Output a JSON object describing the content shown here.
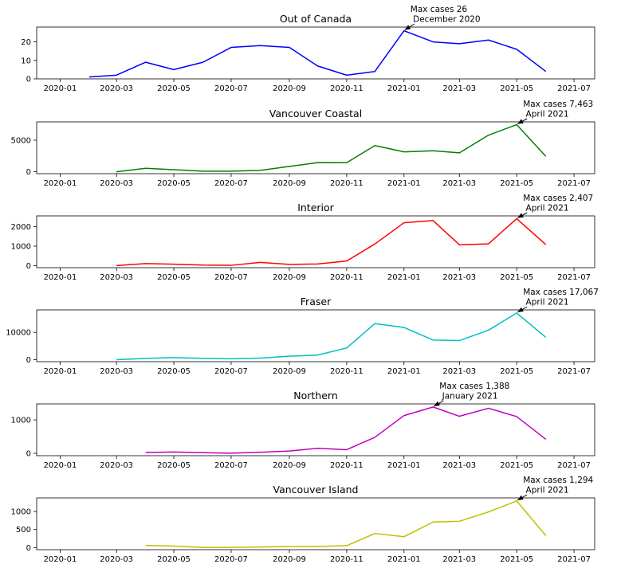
{
  "chart_data": [
    {
      "type": "line",
      "title": "Out of Canada",
      "color": "#0000ff",
      "x": [
        "2020-02-01",
        "2020-03-01",
        "2020-04-01",
        "2020-05-01",
        "2020-06-01",
        "2020-07-01",
        "2020-08-01",
        "2020-09-01",
        "2020-10-01",
        "2020-11-01",
        "2020-12-01",
        "2021-01-01",
        "2021-02-01",
        "2021-03-01",
        "2021-04-01",
        "2021-05-01",
        "2021-06-01"
      ],
      "y": [
        1,
        2,
        9,
        5,
        9,
        17,
        18,
        17,
        7,
        2,
        4,
        26,
        20,
        19,
        21,
        16,
        4
      ],
      "ylim": [
        0,
        28
      ],
      "yticks": [
        0,
        10,
        20
      ],
      "ytick_labels": [
        "0",
        "10",
        "20"
      ],
      "annotation": {
        "line1": "Max cases 26",
        "line2": " December 2020",
        "x": "2021-01-01",
        "y": 26
      }
    },
    {
      "type": "line",
      "title": "Vancouver Coastal",
      "color": "#008000",
      "x": [
        "2020-03-01",
        "2020-04-01",
        "2020-05-01",
        "2020-06-01",
        "2020-07-01",
        "2020-08-01",
        "2020-09-01",
        "2020-10-01",
        "2020-11-01",
        "2020-12-01",
        "2021-01-01",
        "2021-02-01",
        "2021-03-01",
        "2021-04-01",
        "2021-05-01",
        "2021-06-01"
      ],
      "y": [
        5,
        550,
        330,
        100,
        100,
        220,
        850,
        1450,
        1430,
        4150,
        3150,
        3320,
        3000,
        5800,
        7463,
        2450
      ],
      "ylim": [
        -300,
        7900
      ],
      "yticks": [
        0,
        5000
      ],
      "ytick_labels": [
        "0",
        "5000"
      ],
      "annotation": {
        "line1": "Max cases 7,463",
        "line2": " April 2021",
        "x": "2021-05-01",
        "y": 7463
      }
    },
    {
      "type": "line",
      "title": "Interior",
      "color": "#ff0000",
      "x": [
        "2020-03-01",
        "2020-04-01",
        "2020-05-01",
        "2020-06-01",
        "2020-07-01",
        "2020-08-01",
        "2020-09-01",
        "2020-10-01",
        "2020-11-01",
        "2020-12-01",
        "2021-01-01",
        "2021-02-01",
        "2021-03-01",
        "2021-04-01",
        "2021-05-01",
        "2021-06-01"
      ],
      "y": [
        5,
        110,
        80,
        30,
        20,
        170,
        70,
        90,
        240,
        1110,
        2200,
        2310,
        1070,
        1120,
        2407,
        1080
      ],
      "ylim": [
        -100,
        2550
      ],
      "yticks": [
        0,
        1000,
        2000
      ],
      "ytick_labels": [
        "0",
        "1000",
        "2000"
      ],
      "annotation": {
        "line1": "Max cases 2,407",
        "line2": " April 2021",
        "x": "2021-05-01",
        "y": 2407
      }
    },
    {
      "type": "line",
      "title": "Fraser",
      "color": "#00bfbf",
      "x": [
        "2020-03-01",
        "2020-04-01",
        "2020-05-01",
        "2020-06-01",
        "2020-07-01",
        "2020-08-01",
        "2020-09-01",
        "2020-10-01",
        "2020-11-01",
        "2020-12-01",
        "2021-01-01",
        "2021-02-01",
        "2021-03-01",
        "2021-04-01",
        "2021-05-01",
        "2021-06-01"
      ],
      "y": [
        20,
        500,
        800,
        500,
        350,
        600,
        1300,
        1700,
        4300,
        13200,
        11800,
        7200,
        7000,
        10800,
        17067,
        8200
      ],
      "ylim": [
        -700,
        18200
      ],
      "yticks": [
        0,
        10000
      ],
      "ytick_labels": [
        "0",
        "10000"
      ],
      "annotation": {
        "line1": "Max cases 17,067",
        "line2": " April 2021",
        "x": "2021-05-01",
        "y": 17067
      }
    },
    {
      "type": "line",
      "title": "Northern",
      "color": "#bf00bf",
      "x": [
        "2020-04-01",
        "2020-05-01",
        "2020-06-01",
        "2020-07-01",
        "2020-08-01",
        "2020-09-01",
        "2020-10-01",
        "2020-11-01",
        "2020-12-01",
        "2021-01-01",
        "2021-02-01",
        "2021-03-01",
        "2021-04-01",
        "2021-05-01",
        "2021-06-01"
      ],
      "y": [
        25,
        40,
        20,
        5,
        30,
        70,
        150,
        110,
        480,
        1130,
        1388,
        1110,
        1350,
        1100,
        420
      ],
      "ylim": [
        -70,
        1480
      ],
      "yticks": [
        0,
        1000
      ],
      "ytick_labels": [
        "0",
        "1000"
      ],
      "annotation": {
        "line1": "Max cases 1,388",
        "line2": " January 2021",
        "x": "2021-02-01",
        "y": 1388
      }
    },
    {
      "type": "line",
      "title": "Vancouver Island",
      "color": "#bfbf00",
      "x": [
        "2020-04-01",
        "2020-05-01",
        "2020-06-01",
        "2020-07-01",
        "2020-08-01",
        "2020-09-01",
        "2020-10-01",
        "2020-11-01",
        "2020-12-01",
        "2021-01-01",
        "2021-02-01",
        "2021-03-01",
        "2021-04-01",
        "2021-05-01",
        "2021-06-01"
      ],
      "y": [
        60,
        40,
        5,
        5,
        15,
        30,
        30,
        50,
        390,
        300,
        710,
        730,
        990,
        1294,
        330
      ],
      "ylim": [
        -60,
        1380
      ],
      "yticks": [
        0,
        500,
        1000
      ],
      "ytick_labels": [
        "0",
        "500",
        "1000"
      ],
      "annotation": {
        "line1": "Max cases 1,294",
        "line2": " April 2021",
        "x": "2021-05-01",
        "y": 1294
      }
    }
  ],
  "x_axis": {
    "xlim": [
      "2019-12-07",
      "2021-07-23"
    ],
    "ticks": [
      "2020-01-01",
      "2020-03-01",
      "2020-05-01",
      "2020-07-01",
      "2020-09-01",
      "2020-11-01",
      "2021-01-01",
      "2021-03-01",
      "2021-05-01",
      "2021-07-01"
    ],
    "tick_labels": [
      "2020-01",
      "2020-03",
      "2020-05",
      "2020-07",
      "2020-09",
      "2020-11",
      "2021-01",
      "2021-03",
      "2021-05",
      "2021-07"
    ]
  }
}
